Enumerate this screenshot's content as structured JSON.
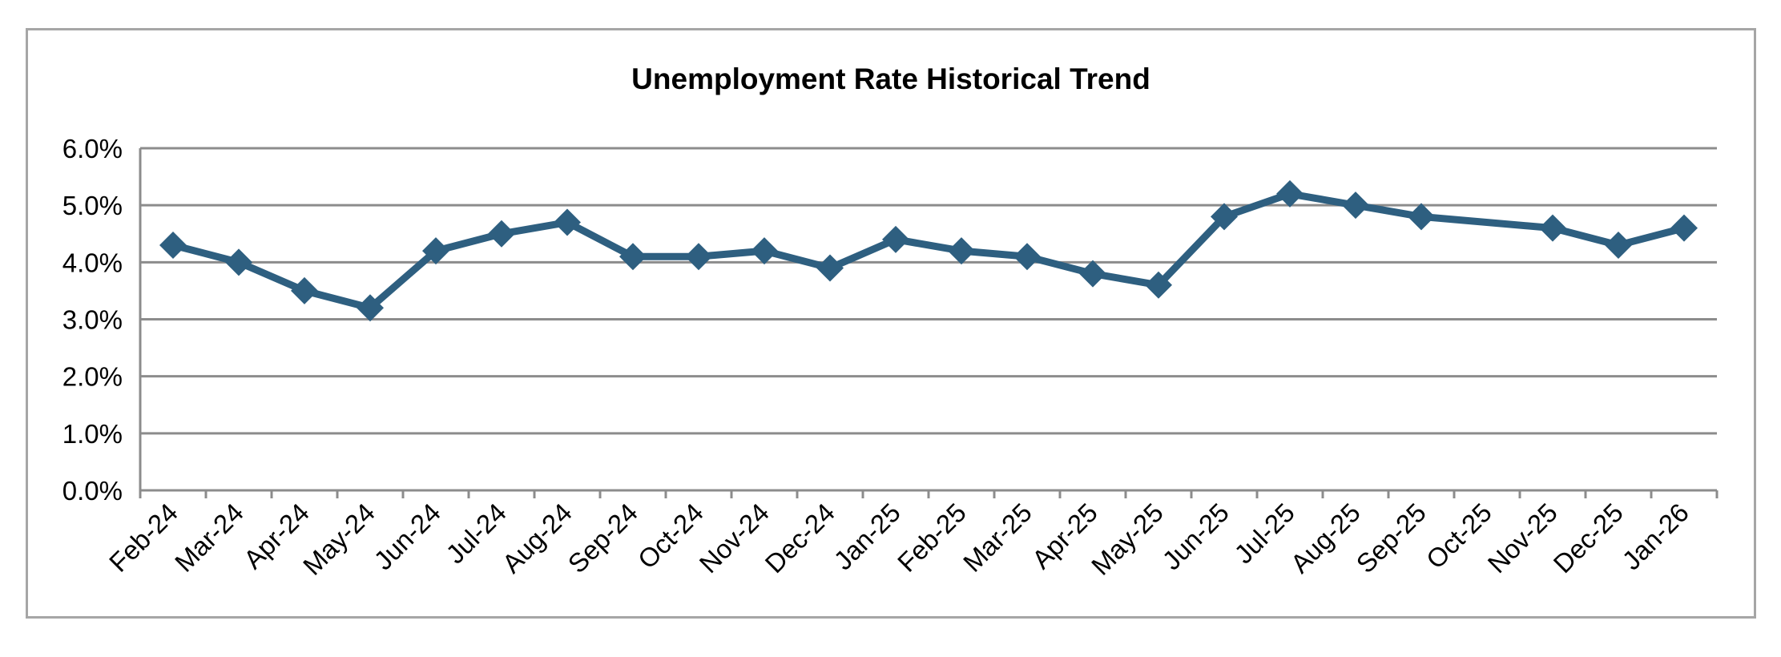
{
  "chart_data": {
    "type": "line",
    "title": "Unemployment Rate Historical Trend",
    "xlabel": "",
    "ylabel": "",
    "categories": [
      "Feb-24",
      "Mar-24",
      "Apr-24",
      "May-24",
      "Jun-24",
      "Jul-24",
      "Aug-24",
      "Sep-24",
      "Oct-24",
      "Nov-24",
      "Dec-24",
      "Jan-25",
      "Feb-25",
      "Mar-25",
      "Apr-25",
      "May-25",
      "Jun-25",
      "Jul-25",
      "Aug-25",
      "Sep-25",
      "Oct-25",
      "Nov-25",
      "Dec-25",
      "Jan-26"
    ],
    "series": [
      {
        "values": [
          4.3,
          4.0,
          3.5,
          3.2,
          4.2,
          4.5,
          4.7,
          4.1,
          4.1,
          4.2,
          3.9,
          4.4,
          4.2,
          4.1,
          3.8,
          3.6,
          4.8,
          5.2,
          5.0,
          4.8,
          null,
          4.6,
          4.3,
          4.6
        ],
        "color": "#2e5f80"
      }
    ],
    "ylim": [
      0,
      6
    ],
    "y_ticks": [
      0,
      1,
      2,
      3,
      4,
      5,
      6
    ],
    "y_tick_labels": [
      "0.0%",
      "1.0%",
      "2.0%",
      "3.0%",
      "4.0%",
      "5.0%",
      "6.0%"
    ],
    "y_format": "percent",
    "grid": true,
    "legend": "none",
    "marker": "diamond",
    "gap_handling": "connect",
    "colors": {
      "line": "#2e5f80",
      "grid": "#8c8c8c",
      "axis": "#8c8c8c",
      "border": "#a6a6a6"
    }
  }
}
